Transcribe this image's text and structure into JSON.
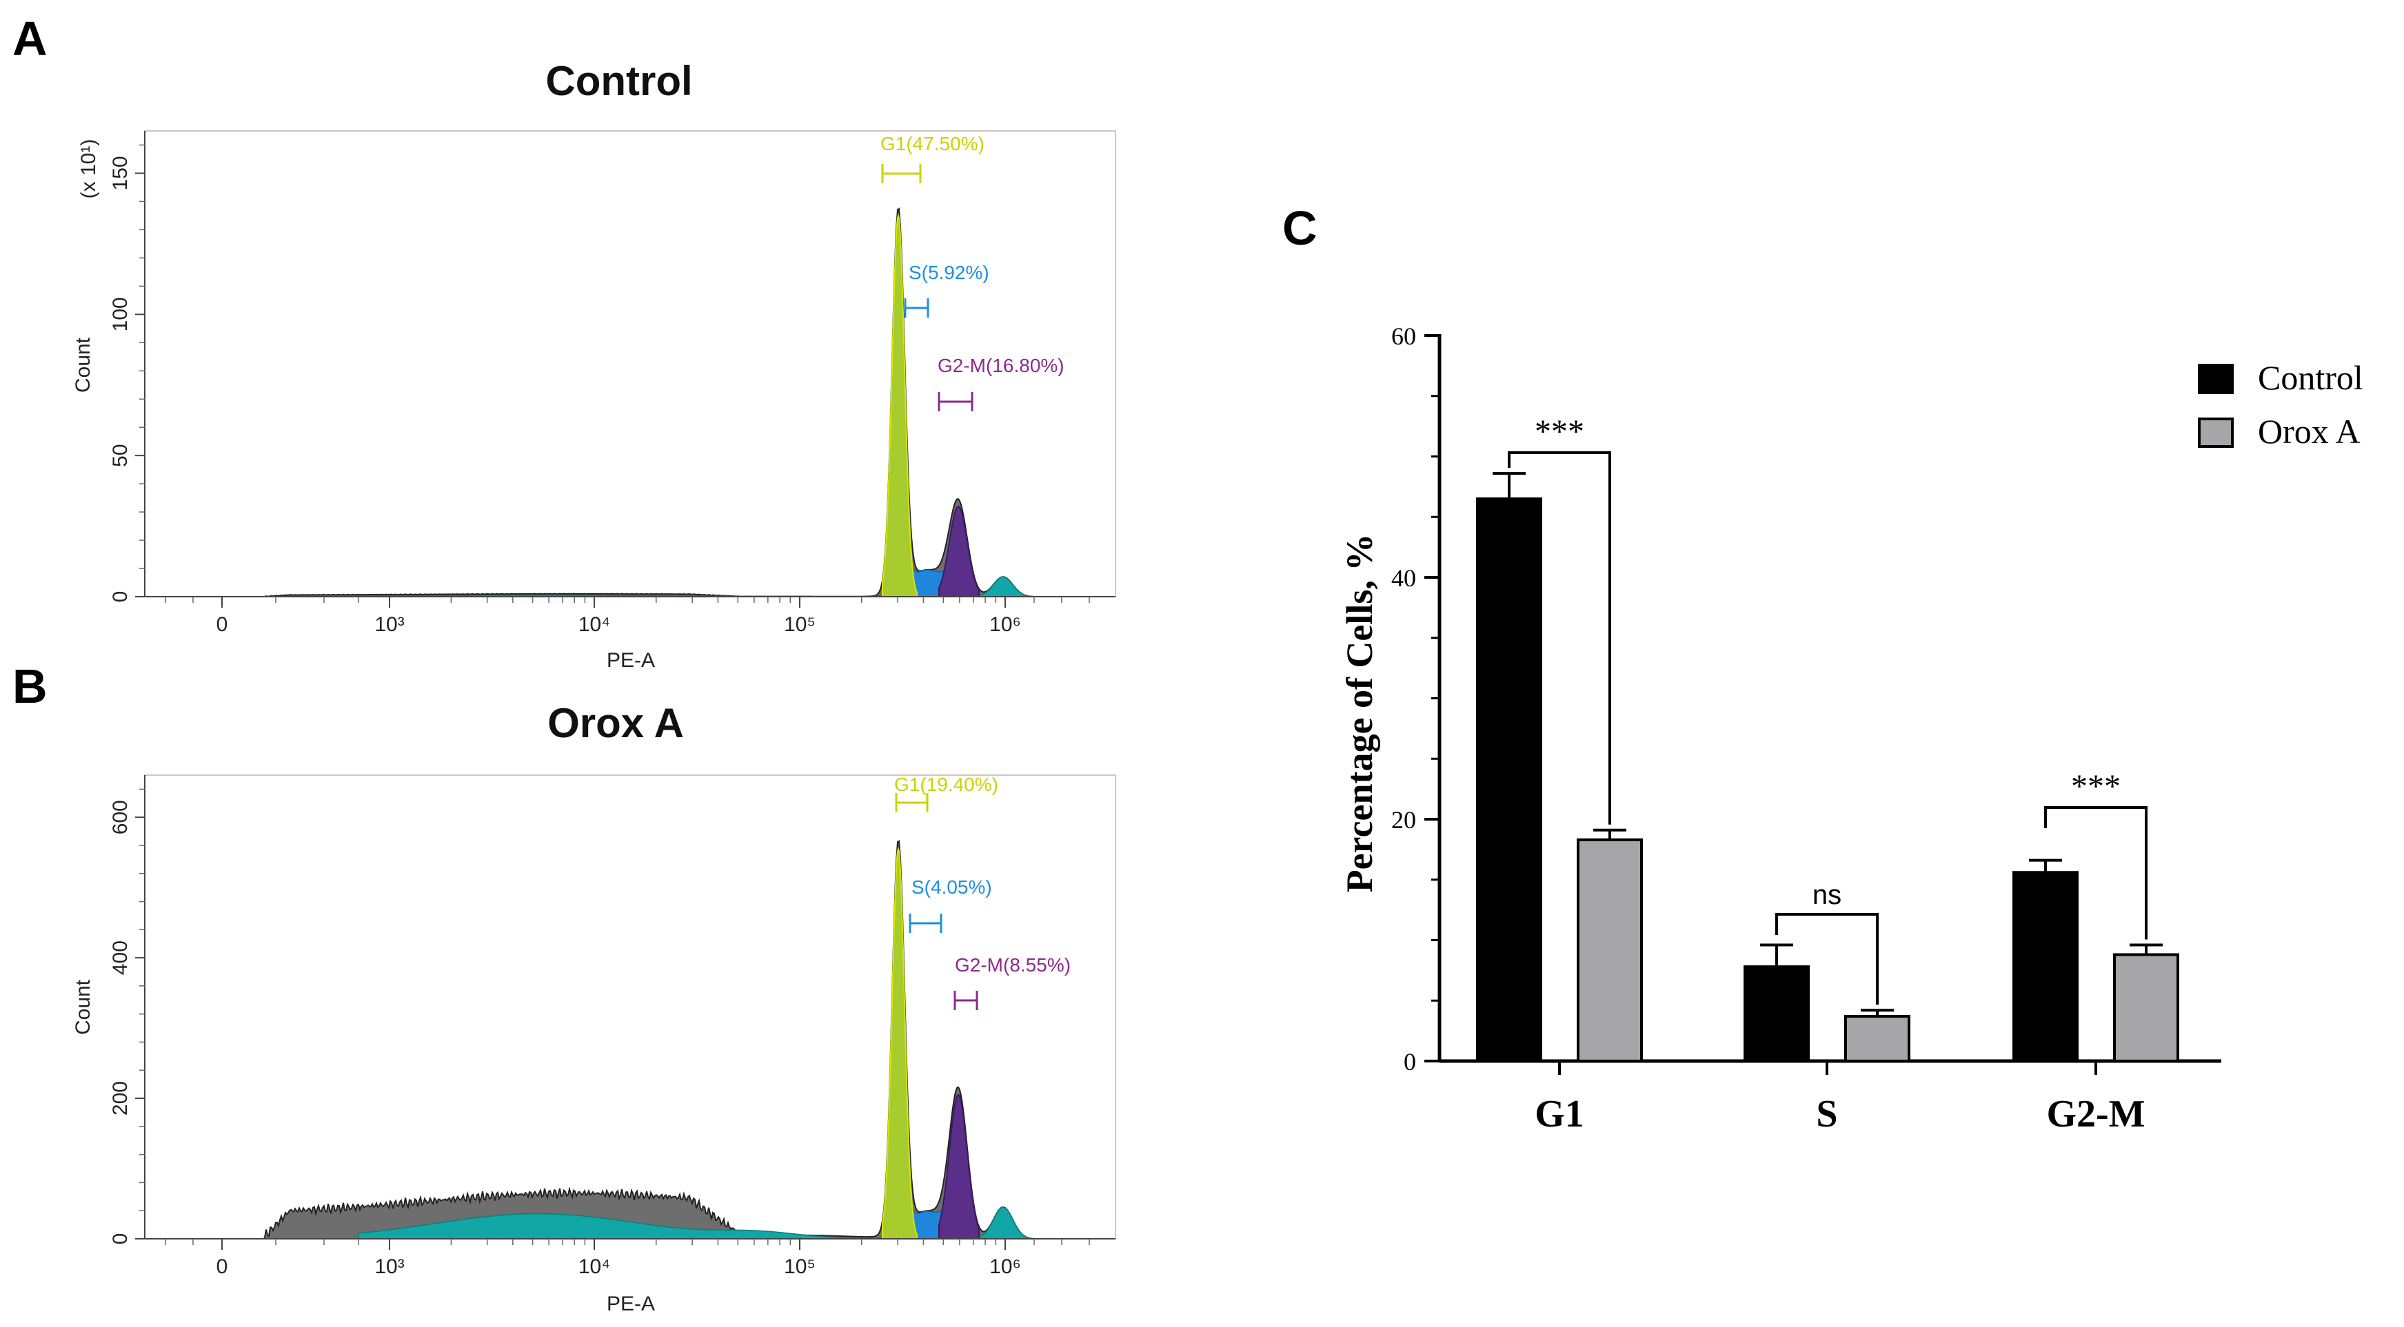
{
  "panels": {
    "a_letter": "A",
    "b_letter": "B",
    "c_letter": "C"
  },
  "chart_data": [
    {
      "type": "area",
      "panel": "A",
      "title": "Control",
      "xlabel": "PE-A",
      "ylabel": "Count",
      "y_scale_note": "(x 10¹)",
      "x_scale": "log",
      "x_ticks": [
        "0",
        "10³",
        "10⁴",
        "10⁵",
        "10⁶"
      ],
      "y_ticks": [
        0,
        50,
        100,
        150
      ],
      "ylim": [
        0,
        165
      ],
      "gates": [
        {
          "name": "G1",
          "label": "G1(47.50%)",
          "color": "#c8d400"
        },
        {
          "name": "S",
          "label": "S(5.92%)",
          "color": "#1e8fe0"
        },
        {
          "name": "G2-M",
          "label": "G2-M(16.80%)",
          "color": "#8b2a8b"
        }
      ],
      "peaks": {
        "G1_peak": 135,
        "G2M_peak": 32,
        "debris_level": 1
      }
    },
    {
      "type": "area",
      "panel": "B",
      "title": "Orox A",
      "xlabel": "PE-A",
      "ylabel": "Count",
      "x_scale": "log",
      "x_ticks": [
        "0",
        "10³",
        "10⁴",
        "10⁵",
        "10⁶"
      ],
      "y_ticks": [
        0,
        200,
        400,
        600
      ],
      "ylim": [
        0,
        660
      ],
      "gates": [
        {
          "name": "G1",
          "label": "G1(19.40%)",
          "color": "#c8d400"
        },
        {
          "name": "S",
          "label": "S(4.05%)",
          "color": "#1e8fe0"
        },
        {
          "name": "G2-M",
          "label": "G2-M(8.55%)",
          "color": "#8b2a8b"
        }
      ],
      "peaks": {
        "G1_peak": 555,
        "G2M_peak": 205,
        "debris_level": 65
      }
    },
    {
      "type": "bar",
      "panel": "C",
      "categories": [
        "G1",
        "S",
        "G2-M"
      ],
      "series": [
        {
          "name": "Control",
          "color": "#000000",
          "values": [
            46.5,
            7.8,
            15.6
          ],
          "errors": [
            2.1,
            1.8,
            1.0
          ]
        },
        {
          "name": "Orox A",
          "color": "#a6a6a8",
          "values": [
            18.3,
            3.7,
            8.8
          ],
          "errors": [
            0.8,
            0.5,
            0.8
          ]
        }
      ],
      "xlabel": "",
      "ylabel": "Percentage of Cells, %",
      "ylim": [
        0,
        60
      ],
      "y_ticks": [
        0,
        20,
        40,
        60
      ],
      "significance": [
        "***",
        "ns",
        "***"
      ],
      "legend": "top-right"
    }
  ]
}
